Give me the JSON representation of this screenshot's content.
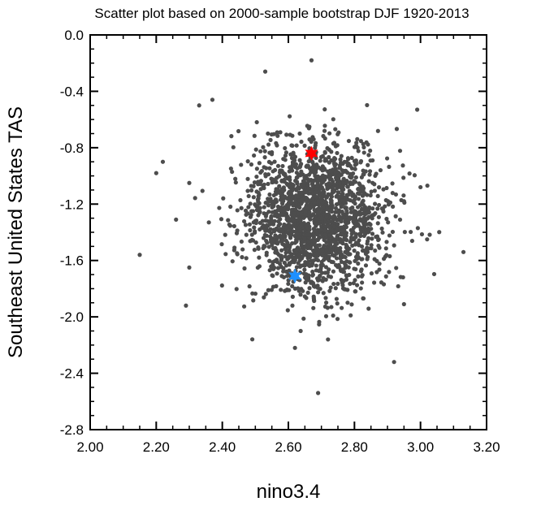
{
  "chart_data": {
    "type": "scatter",
    "title": "Scatter plot based on 2000-sample bootstrap DJF 1920-2013",
    "xlabel": "nino3.4",
    "ylabel": "Southeast United States TAS",
    "xlim": [
      2.0,
      3.2
    ],
    "ylim": [
      -2.8,
      0.0
    ],
    "x_ticks": [
      "2.00",
      "2.20",
      "2.40",
      "2.60",
      "2.80",
      "3.00",
      "3.20"
    ],
    "y_ticks": [
      "0.0",
      "-0.4",
      "-0.8",
      "-1.2",
      "-1.6",
      "-2.0",
      "-2.4",
      "-2.8"
    ],
    "grid": false,
    "point_color": "#4d4d4d",
    "sample_size": 2000,
    "cloud_center": {
      "x": 2.68,
      "y": -1.3
    },
    "cloud_spread": {
      "x": 0.12,
      "y": 0.28
    },
    "outliers": [
      {
        "x": 2.15,
        "y": -1.56
      },
      {
        "x": 3.13,
        "y": -1.54
      },
      {
        "x": 2.69,
        "y": -2.54
      },
      {
        "x": 2.67,
        "y": -0.18
      },
      {
        "x": 2.53,
        "y": -0.26
      },
      {
        "x": 2.2,
        "y": -0.98
      },
      {
        "x": 2.22,
        "y": -0.9
      },
      {
        "x": 2.26,
        "y": -1.31
      },
      {
        "x": 2.29,
        "y": -1.92
      },
      {
        "x": 2.92,
        "y": -2.32
      },
      {
        "x": 3.02,
        "y": -1.45
      },
      {
        "x": 2.99,
        "y": -0.53
      },
      {
        "x": 2.37,
        "y": -0.46
      },
      {
        "x": 2.33,
        "y": -0.5
      },
      {
        "x": 2.3,
        "y": -1.05
      },
      {
        "x": 3.0,
        "y": -1.08
      },
      {
        "x": 2.62,
        "y": -2.22
      },
      {
        "x": 2.72,
        "y": -2.16
      },
      {
        "x": 2.3,
        "y": -1.65
      },
      {
        "x": 2.95,
        "y": -1.91
      }
    ],
    "markers": [
      {
        "name": "red star",
        "x": 2.67,
        "y": -0.84,
        "color": "#ff0000"
      },
      {
        "name": "blue star",
        "x": 2.62,
        "y": -1.71,
        "color": "#1e90ff"
      }
    ]
  }
}
